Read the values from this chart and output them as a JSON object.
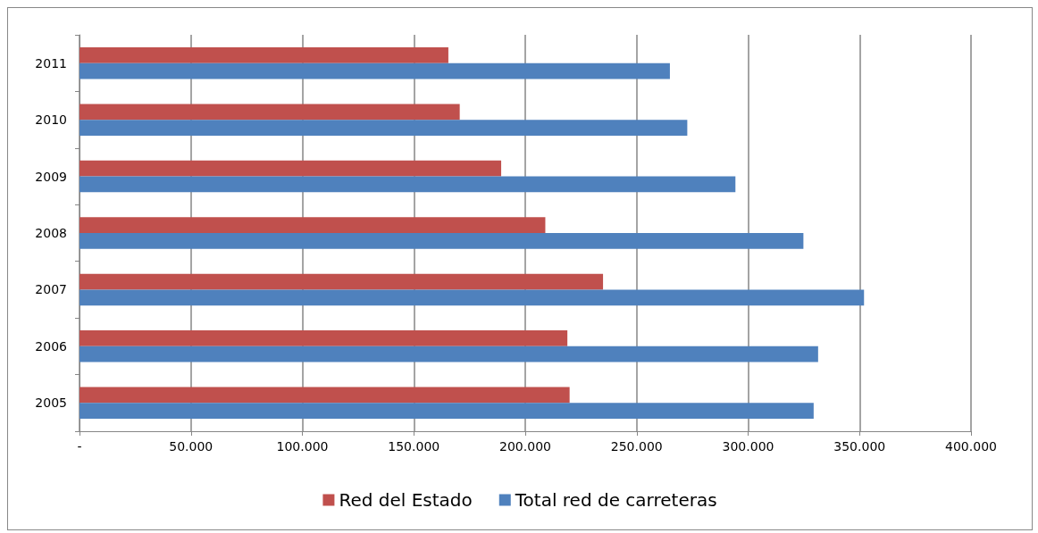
{
  "chart_data": {
    "type": "bar",
    "orientation": "horizontal",
    "categories": [
      "2011",
      "2010",
      "2009",
      "2008",
      "2007",
      "2006",
      "2005"
    ],
    "series": [
      {
        "name": "Red del Estado",
        "color": "#c0504d",
        "values": [
          165500,
          170600,
          189200,
          209000,
          234900,
          218900,
          219900
        ]
      },
      {
        "name": "Total red de carreteras",
        "color": "#4f81bd",
        "values": [
          264900,
          272700,
          294300,
          324800,
          352000,
          331400,
          329400
        ]
      }
    ],
    "xlim": [
      0,
      400000
    ],
    "xticks": [
      {
        "value": 0,
        "label": "-"
      },
      {
        "value": 50000,
        "label": "50.000"
      },
      {
        "value": 100000,
        "label": "100.000"
      },
      {
        "value": 150000,
        "label": "150.000"
      },
      {
        "value": 200000,
        "label": "200.000"
      },
      {
        "value": 250000,
        "label": "250.000"
      },
      {
        "value": 300000,
        "label": "300.000"
      },
      {
        "value": 350000,
        "label": "350.000"
      },
      {
        "value": 400000,
        "label": "400.000"
      }
    ],
    "grid": "x",
    "legend": "bottom"
  }
}
